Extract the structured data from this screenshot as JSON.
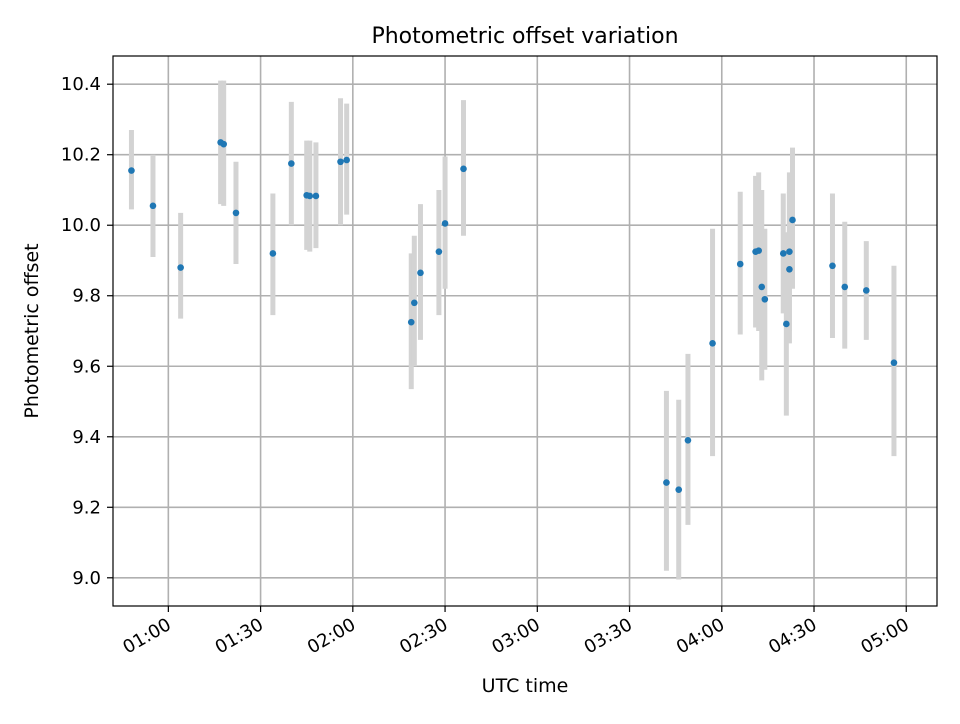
{
  "chart_data": {
    "type": "scatter",
    "title": "Photometric offset variation",
    "xlabel": "UTC time",
    "ylabel": "Photometric offset",
    "x_tick_labels": [
      "01:00",
      "01:30",
      "02:00",
      "02:30",
      "03:00",
      "03:30",
      "04:00",
      "04:30",
      "05:00"
    ],
    "y_tick_labels": [
      "9.0",
      "9.2",
      "9.4",
      "9.6",
      "9.8",
      "10.0",
      "10.2",
      "10.4"
    ],
    "x_ticks": [
      "01:00",
      "01:30",
      "02:00",
      "02:30",
      "03:00",
      "03:30",
      "04:00",
      "04:30",
      "05:00"
    ],
    "y_ticks": [
      9.0,
      9.2,
      9.4,
      9.6,
      9.8,
      10.0,
      10.2,
      10.4
    ],
    "xlim": [
      "00:42",
      "05:10"
    ],
    "ylim": [
      8.92,
      10.48
    ],
    "grid": true,
    "marker_color": "#1f77b4",
    "errorbar_color": "#d3d3d3",
    "points": [
      {
        "x": "00:48",
        "y": 10.155,
        "yerr_low": 10.045,
        "yerr_high": 10.27
      },
      {
        "x": "00:55",
        "y": 10.055,
        "yerr_low": 9.91,
        "yerr_high": 10.2
      },
      {
        "x": "01:04",
        "y": 9.88,
        "yerr_low": 9.735,
        "yerr_high": 10.035
      },
      {
        "x": "01:17",
        "y": 10.235,
        "yerr_low": 10.06,
        "yerr_high": 10.41
      },
      {
        "x": "01:18",
        "y": 10.23,
        "yerr_low": 10.055,
        "yerr_high": 10.41
      },
      {
        "x": "01:22",
        "y": 10.035,
        "yerr_low": 9.89,
        "yerr_high": 10.18
      },
      {
        "x": "01:34",
        "y": 9.92,
        "yerr_low": 9.745,
        "yerr_high": 10.09
      },
      {
        "x": "01:40",
        "y": 10.175,
        "yerr_low": 10.0,
        "yerr_high": 10.35
      },
      {
        "x": "01:45",
        "y": 10.085,
        "yerr_low": 9.93,
        "yerr_high": 10.24
      },
      {
        "x": "01:46",
        "y": 10.083,
        "yerr_low": 9.925,
        "yerr_high": 10.24
      },
      {
        "x": "01:48",
        "y": 10.083,
        "yerr_low": 9.935,
        "yerr_high": 10.235
      },
      {
        "x": "01:56",
        "y": 10.18,
        "yerr_low": 10.0,
        "yerr_high": 10.36
      },
      {
        "x": "01:58",
        "y": 10.185,
        "yerr_low": 10.03,
        "yerr_high": 10.345
      },
      {
        "x": "02:19",
        "y": 9.725,
        "yerr_low": 9.535,
        "yerr_high": 9.92
      },
      {
        "x": "02:20",
        "y": 9.78,
        "yerr_low": 9.6,
        "yerr_high": 9.97
      },
      {
        "x": "02:22",
        "y": 9.865,
        "yerr_low": 9.675,
        "yerr_high": 10.06
      },
      {
        "x": "02:28",
        "y": 9.925,
        "yerr_low": 9.745,
        "yerr_high": 10.1
      },
      {
        "x": "02:30",
        "y": 10.005,
        "yerr_low": 9.82,
        "yerr_high": 10.195
      },
      {
        "x": "02:36",
        "y": 10.16,
        "yerr_low": 9.97,
        "yerr_high": 10.355
      },
      {
        "x": "03:42",
        "y": 9.27,
        "yerr_low": 9.02,
        "yerr_high": 9.53
      },
      {
        "x": "03:46",
        "y": 9.25,
        "yerr_low": 8.995,
        "yerr_high": 9.505
      },
      {
        "x": "03:49",
        "y": 9.39,
        "yerr_low": 9.15,
        "yerr_high": 9.635
      },
      {
        "x": "03:57",
        "y": 9.665,
        "yerr_low": 9.345,
        "yerr_high": 9.99
      },
      {
        "x": "04:06",
        "y": 9.89,
        "yerr_low": 9.69,
        "yerr_high": 10.095
      },
      {
        "x": "04:11",
        "y": 9.925,
        "yerr_low": 9.71,
        "yerr_high": 10.14
      },
      {
        "x": "04:12",
        "y": 9.928,
        "yerr_low": 9.7,
        "yerr_high": 10.15
      },
      {
        "x": "04:13",
        "y": 9.825,
        "yerr_low": 9.56,
        "yerr_high": 10.1
      },
      {
        "x": "04:14",
        "y": 9.79,
        "yerr_low": 9.59,
        "yerr_high": 9.99
      },
      {
        "x": "04:20",
        "y": 9.92,
        "yerr_low": 9.75,
        "yerr_high": 10.09
      },
      {
        "x": "04:21",
        "y": 9.72,
        "yerr_low": 9.46,
        "yerr_high": 9.98
      },
      {
        "x": "04:22",
        "y": 9.875,
        "yerr_low": 9.665,
        "yerr_high": 10.095
      },
      {
        "x": "04:22",
        "y": 9.925,
        "yerr_low": 9.7,
        "yerr_high": 10.15
      },
      {
        "x": "04:23",
        "y": 10.015,
        "yerr_low": 9.82,
        "yerr_high": 10.22
      },
      {
        "x": "04:36",
        "y": 9.885,
        "yerr_low": 9.68,
        "yerr_high": 10.09
      },
      {
        "x": "04:40",
        "y": 9.825,
        "yerr_low": 9.65,
        "yerr_high": 10.01
      },
      {
        "x": "04:47",
        "y": 9.815,
        "yerr_low": 9.675,
        "yerr_high": 9.955
      },
      {
        "x": "04:56",
        "y": 9.61,
        "yerr_low": 9.345,
        "yerr_high": 9.885
      }
    ]
  }
}
